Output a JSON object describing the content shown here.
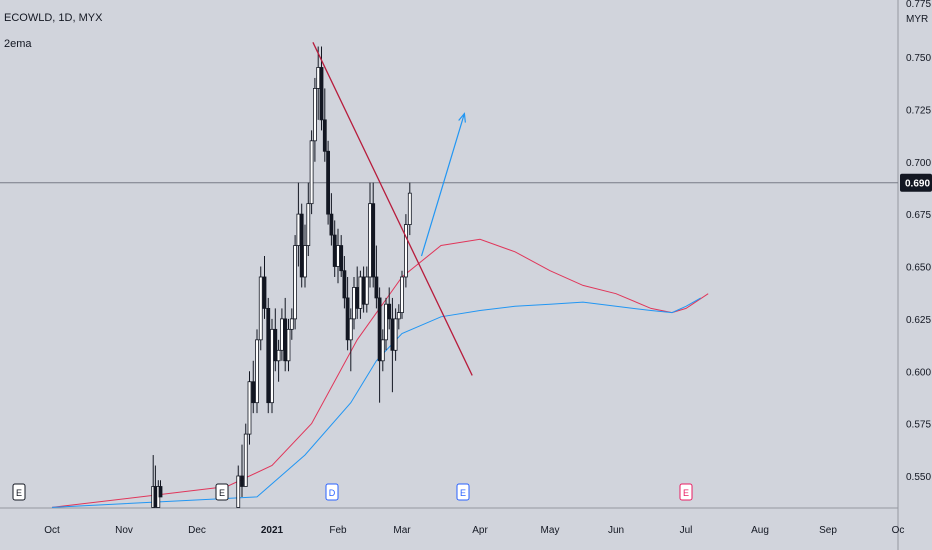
{
  "header": {
    "symbol_line": "ECOWLD, 1D, MYX",
    "indicator": "2ema"
  },
  "price_axis": {
    "top_partial": "0.775",
    "currency": "MYR",
    "labels": [
      "0.750",
      "0.725",
      "0.700",
      "0.675",
      "0.650",
      "0.625",
      "0.600",
      "0.575",
      "0.550"
    ],
    "last_price": "0.690"
  },
  "time_axis": {
    "labels": [
      "Oct",
      "Nov",
      "Dec",
      "2021",
      "Feb",
      "Mar",
      "Apr",
      "May",
      "Jun",
      "Jul",
      "Aug",
      "Sep",
      "Oc"
    ]
  },
  "markers": [
    {
      "letter": "E",
      "color": "#131722"
    },
    {
      "letter": "E",
      "color": "#131722"
    },
    {
      "letter": "D",
      "color": "#2962ff"
    },
    {
      "letter": "E",
      "color": "#2962ff"
    },
    {
      "letter": "E",
      "color": "#e91e63"
    }
  ],
  "colors": {
    "background": "#d1d4dc",
    "ema_fast": "#e0365a",
    "ema_slow": "#2196f3",
    "trendline": "#b71c3c",
    "projection_arrow": "#2196f3",
    "price_line": "#787b86",
    "last_price_badge": "#131722"
  },
  "chart_data": {
    "type": "candlestick",
    "symbol": "ECOWLD",
    "interval": "1D",
    "exchange": "MYX",
    "y_range": [
      0.535,
      0.78
    ],
    "last_price": 0.69,
    "series": [
      {
        "name": "2ema",
        "points": [
          [
            0.0,
            0.535
          ],
          [
            2.4,
            0.545
          ],
          [
            3.0,
            0.555
          ],
          [
            3.6,
            0.575
          ],
          [
            4.3,
            0.615
          ],
          [
            5.0,
            0.645
          ],
          [
            5.5,
            0.66
          ],
          [
            6.0,
            0.663
          ],
          [
            6.5,
            0.657
          ],
          [
            7.0,
            0.648
          ],
          [
            7.5,
            0.641
          ],
          [
            8.0,
            0.637
          ],
          [
            8.5,
            0.63
          ],
          [
            8.8,
            0.628
          ],
          [
            9.0,
            0.63
          ],
          [
            9.3,
            0.637
          ]
        ]
      },
      {
        "name": "2ema",
        "points": [
          [
            0.0,
            0.535
          ],
          [
            2.8,
            0.54
          ],
          [
            3.5,
            0.56
          ],
          [
            4.2,
            0.585
          ],
          [
            4.6,
            0.605
          ],
          [
            5.0,
            0.618
          ],
          [
            5.5,
            0.626
          ],
          [
            6.0,
            0.629
          ],
          [
            6.5,
            0.631
          ],
          [
            7.0,
            0.632
          ],
          [
            7.5,
            0.633
          ],
          [
            8.0,
            0.631
          ],
          [
            8.5,
            0.629
          ],
          [
            8.8,
            0.628
          ],
          [
            9.0,
            0.631
          ],
          [
            9.2,
            0.635
          ]
        ]
      }
    ],
    "candles": [
      [
        1.4,
        0.535,
        0.56,
        0.535,
        0.545
      ],
      [
        1.43,
        0.545,
        0.555,
        0.535,
        0.535
      ],
      [
        1.47,
        0.535,
        0.548,
        0.535,
        0.545
      ],
      [
        1.5,
        0.545,
        0.548,
        0.54,
        0.54
      ],
      [
        2.55,
        0.535,
        0.555,
        0.535,
        0.55
      ],
      [
        2.6,
        0.55,
        0.565,
        0.54,
        0.545
      ],
      [
        2.65,
        0.545,
        0.575,
        0.545,
        0.57
      ],
      [
        2.7,
        0.57,
        0.6,
        0.565,
        0.595
      ],
      [
        2.75,
        0.595,
        0.605,
        0.58,
        0.585
      ],
      [
        2.8,
        0.585,
        0.62,
        0.58,
        0.615
      ],
      [
        2.85,
        0.615,
        0.65,
        0.61,
        0.645
      ],
      [
        2.9,
        0.645,
        0.655,
        0.625,
        0.63
      ],
      [
        2.95,
        0.63,
        0.635,
        0.58,
        0.585
      ],
      [
        3.0,
        0.585,
        0.625,
        0.58,
        0.62
      ],
      [
        3.05,
        0.62,
        0.63,
        0.6,
        0.605
      ],
      [
        3.1,
        0.605,
        0.615,
        0.595,
        0.61
      ],
      [
        3.15,
        0.61,
        0.63,
        0.605,
        0.625
      ],
      [
        3.2,
        0.625,
        0.635,
        0.6,
        0.605
      ],
      [
        3.25,
        0.605,
        0.625,
        0.6,
        0.62
      ],
      [
        3.3,
        0.62,
        0.63,
        0.615,
        0.625
      ],
      [
        3.35,
        0.625,
        0.665,
        0.62,
        0.66
      ],
      [
        3.4,
        0.66,
        0.69,
        0.65,
        0.675
      ],
      [
        3.45,
        0.675,
        0.68,
        0.64,
        0.645
      ],
      [
        3.5,
        0.645,
        0.67,
        0.64,
        0.66
      ],
      [
        3.55,
        0.66,
        0.69,
        0.655,
        0.68
      ],
      [
        3.6,
        0.68,
        0.715,
        0.675,
        0.71
      ],
      [
        3.65,
        0.71,
        0.74,
        0.7,
        0.735
      ],
      [
        3.7,
        0.735,
        0.755,
        0.72,
        0.745
      ],
      [
        3.75,
        0.745,
        0.755,
        0.715,
        0.72
      ],
      [
        3.8,
        0.72,
        0.735,
        0.7,
        0.705
      ],
      [
        3.85,
        0.705,
        0.71,
        0.67,
        0.675
      ],
      [
        3.9,
        0.675,
        0.685,
        0.66,
        0.665
      ],
      [
        3.95,
        0.665,
        0.672,
        0.645,
        0.65
      ],
      [
        4.0,
        0.65,
        0.668,
        0.642,
        0.66
      ],
      [
        4.05,
        0.66,
        0.665,
        0.645,
        0.648
      ],
      [
        4.1,
        0.648,
        0.655,
        0.63,
        0.635
      ],
      [
        4.15,
        0.635,
        0.645,
        0.61,
        0.615
      ],
      [
        4.2,
        0.615,
        0.63,
        0.6,
        0.625
      ],
      [
        4.25,
        0.625,
        0.645,
        0.62,
        0.64
      ],
      [
        4.3,
        0.64,
        0.65,
        0.625,
        0.63
      ],
      [
        4.35,
        0.63,
        0.648,
        0.625,
        0.645
      ],
      [
        4.4,
        0.645,
        0.65,
        0.628,
        0.632
      ],
      [
        4.45,
        0.632,
        0.65,
        0.628,
        0.645
      ],
      [
        4.5,
        0.645,
        0.69,
        0.64,
        0.68
      ],
      [
        4.55,
        0.68,
        0.69,
        0.64,
        0.645
      ],
      [
        4.6,
        0.645,
        0.66,
        0.63,
        0.635
      ],
      [
        4.65,
        0.635,
        0.64,
        0.585,
        0.605
      ],
      [
        4.7,
        0.605,
        0.62,
        0.6,
        0.615
      ],
      [
        4.75,
        0.615,
        0.635,
        0.61,
        0.632
      ],
      [
        4.8,
        0.632,
        0.64,
        0.62,
        0.625
      ],
      [
        4.85,
        0.625,
        0.635,
        0.59,
        0.61
      ],
      [
        4.9,
        0.61,
        0.63,
        0.605,
        0.625
      ],
      [
        4.95,
        0.625,
        0.632,
        0.62,
        0.628
      ],
      [
        5.0,
        0.628,
        0.648,
        0.625,
        0.645
      ],
      [
        5.05,
        0.645,
        0.675,
        0.64,
        0.67
      ],
      [
        5.1,
        0.67,
        0.69,
        0.665,
        0.685
      ]
    ],
    "trendline": [
      [
        3.62,
        0.757
      ],
      [
        5.9,
        0.598
      ]
    ],
    "projection_arrow": [
      [
        5.25,
        0.655
      ],
      [
        5.8,
        0.723
      ]
    ],
    "horizontal_line": 0.69
  }
}
